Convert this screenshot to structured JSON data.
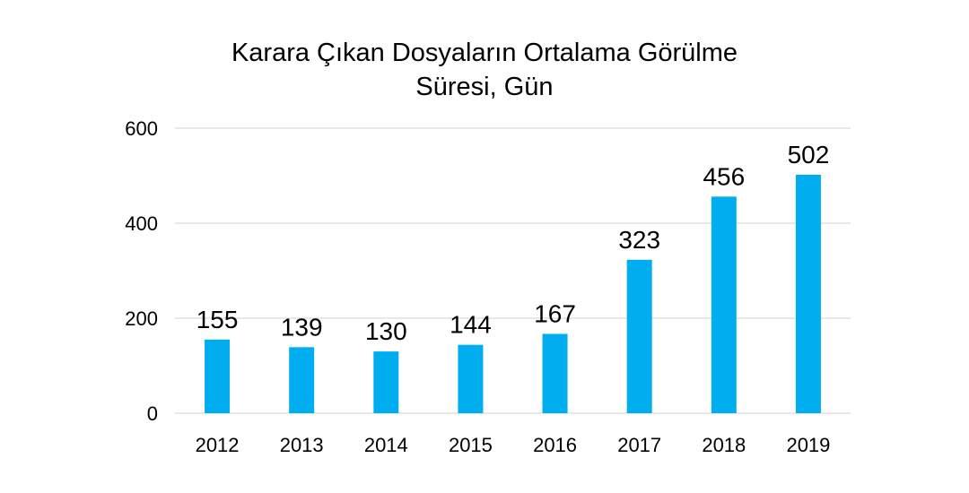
{
  "chart_data": {
    "type": "bar",
    "title": "Karara Çıkan Dosyaların Ortalama Görülme\nSüresi, Gün",
    "categories": [
      "2012",
      "2013",
      "2014",
      "2015",
      "2016",
      "2017",
      "2018",
      "2019"
    ],
    "values": [
      155,
      139,
      130,
      144,
      167,
      323,
      456,
      502
    ],
    "data_labels": [
      "155",
      "139",
      "130",
      "144",
      "167",
      "323",
      "456",
      "502"
    ],
    "xlabel": "",
    "ylabel": "",
    "ylim": [
      0,
      600
    ],
    "yticks": [
      0,
      200,
      400,
      600
    ],
    "ytick_labels": [
      "0",
      "200",
      "400",
      "600"
    ],
    "grid": true,
    "legend": "none",
    "colors": {
      "bar": "#00AEEF",
      "grid": "#D9D9D9",
      "text": "#000000"
    }
  }
}
